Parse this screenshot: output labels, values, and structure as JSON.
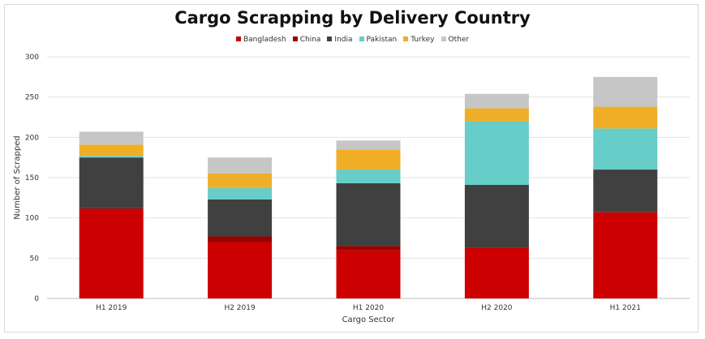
{
  "chart_data": {
    "type": "bar",
    "stacked": true,
    "title": "Cargo Scrapping by Delivery Country",
    "xlabel": "Cargo Sector",
    "ylabel": "Number of Scrapped",
    "ylim": [
      0,
      300
    ],
    "yticks": [
      "0",
      "50",
      "100",
      "150",
      "200",
      "250",
      "300"
    ],
    "grid": true,
    "legend_position": "top",
    "categories": [
      "H1 2019",
      "H2 2019",
      "H1 2020",
      "H2 2020",
      "H1 2021"
    ],
    "series": [
      {
        "name": "Bangladesh",
        "color": "#cc0000",
        "values": [
          110,
          70,
          60,
          63,
          107
        ]
      },
      {
        "name": "China",
        "color": "#990000",
        "values": [
          2,
          7,
          5,
          0,
          0
        ]
      },
      {
        "name": "India",
        "color": "#404040",
        "values": [
          63,
          46,
          78,
          78,
          53
        ]
      },
      {
        "name": "Pakistan",
        "color": "#66cdc8",
        "values": [
          2,
          14,
          17,
          79,
          51
        ]
      },
      {
        "name": "Turkey",
        "color": "#f0ae28",
        "values": [
          14,
          18,
          25,
          16,
          27
        ]
      },
      {
        "name": "Other",
        "color": "#c6c6c6",
        "values": [
          16,
          20,
          11,
          18,
          37
        ]
      }
    ]
  }
}
